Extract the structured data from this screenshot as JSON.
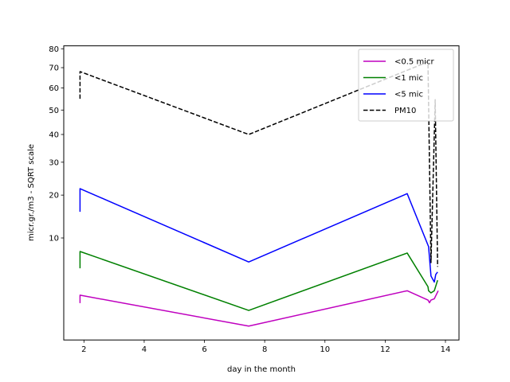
{
  "chart_data": {
    "type": "line",
    "title": "",
    "xlabel": "day in the month",
    "ylabel": "micr.gr./m3 - SQRT scale",
    "yscale": "sqrt",
    "xlim": [
      1.33,
      14.45
    ],
    "ylim": [
      0.002,
      81.6
    ],
    "xticks": [
      2,
      4,
      6,
      8,
      10,
      12,
      14
    ],
    "xtick_labels": [
      "2",
      "4",
      "6",
      "8",
      "10",
      "12",
      "14"
    ],
    "yticks": [
      10,
      20,
      30,
      40,
      50,
      60,
      70,
      80
    ],
    "ytick_labels": [
      "10",
      "20",
      "30",
      "40",
      "50",
      "60",
      "70",
      "80"
    ],
    "grid": false,
    "legend_position": "top-right",
    "series": [
      {
        "name": "<0.5 micr",
        "color": "#bf00bf",
        "style": "solid",
        "x": [
          1.87,
          1.87,
          7.47,
          12.73,
          13.42,
          13.47,
          13.52,
          13.63,
          13.76
        ],
        "y": [
          1.37,
          2.0,
          0.22,
          2.4,
          1.6,
          1.4,
          1.6,
          1.7,
          2.4
        ]
      },
      {
        "name": "<1 mic",
        "color": "#008000",
        "style": "solid",
        "x": [
          1.87,
          1.87,
          7.47,
          12.73,
          13.42,
          13.44,
          13.52,
          13.63,
          13.74
        ],
        "y": [
          5.0,
          7.56,
          0.9,
          7.3,
          2.8,
          2.4,
          2.2,
          2.4,
          3.5
        ]
      },
      {
        "name": "<5 mic",
        "color": "#0000ff",
        "style": "solid",
        "x": [
          1.87,
          1.87,
          7.47,
          12.73,
          13.44,
          13.52,
          13.63,
          13.68,
          13.74
        ],
        "y": [
          15.7,
          21.8,
          5.9,
          20.4,
          8.4,
          4.0,
          3.3,
          4.2,
          4.5
        ]
      },
      {
        "name": "PM10",
        "color": "#000000",
        "style": "dashed",
        "x": [
          1.87,
          1.87,
          7.47,
          13.42,
          13.52,
          13.66,
          13.74
        ],
        "y": [
          55,
          68,
          40,
          73,
          5.8,
          54.6,
          5.2
        ]
      }
    ]
  }
}
